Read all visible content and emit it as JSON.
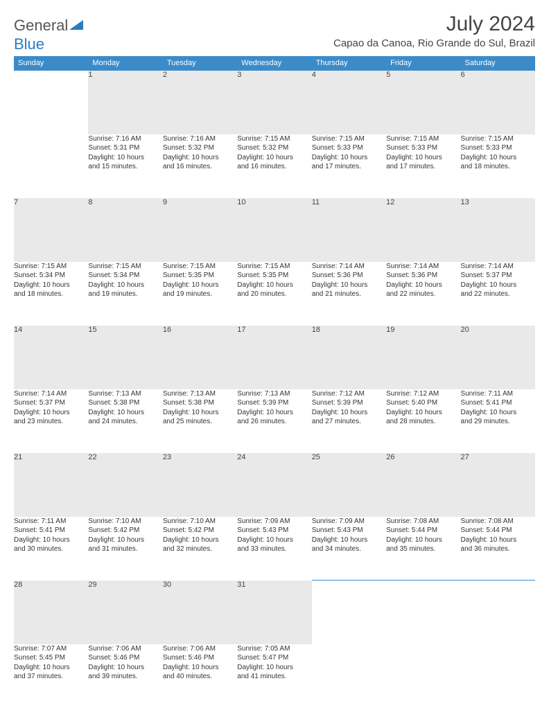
{
  "brand": {
    "part1": "General",
    "part2": "Blue"
  },
  "title": "July 2024",
  "location": "Capao da Canoa, Rio Grande do Sul, Brazil",
  "colors": {
    "header_bg": "#3b8bc9",
    "header_text": "#ffffff",
    "daynum_bg": "#e9e9e9",
    "border": "#3b8bc9",
    "text": "#333333",
    "logo_gray": "#555555",
    "logo_blue": "#2b7bbf"
  },
  "weekdays": [
    "Sunday",
    "Monday",
    "Tuesday",
    "Wednesday",
    "Thursday",
    "Friday",
    "Saturday"
  ],
  "weeks": [
    {
      "nums": [
        "",
        "1",
        "2",
        "3",
        "4",
        "5",
        "6"
      ],
      "cells": [
        null,
        {
          "sunrise": "Sunrise: 7:16 AM",
          "sunset": "Sunset: 5:31 PM",
          "day1": "Daylight: 10 hours",
          "day2": "and 15 minutes."
        },
        {
          "sunrise": "Sunrise: 7:16 AM",
          "sunset": "Sunset: 5:32 PM",
          "day1": "Daylight: 10 hours",
          "day2": "and 16 minutes."
        },
        {
          "sunrise": "Sunrise: 7:15 AM",
          "sunset": "Sunset: 5:32 PM",
          "day1": "Daylight: 10 hours",
          "day2": "and 16 minutes."
        },
        {
          "sunrise": "Sunrise: 7:15 AM",
          "sunset": "Sunset: 5:33 PM",
          "day1": "Daylight: 10 hours",
          "day2": "and 17 minutes."
        },
        {
          "sunrise": "Sunrise: 7:15 AM",
          "sunset": "Sunset: 5:33 PM",
          "day1": "Daylight: 10 hours",
          "day2": "and 17 minutes."
        },
        {
          "sunrise": "Sunrise: 7:15 AM",
          "sunset": "Sunset: 5:33 PM",
          "day1": "Daylight: 10 hours",
          "day2": "and 18 minutes."
        }
      ]
    },
    {
      "nums": [
        "7",
        "8",
        "9",
        "10",
        "11",
        "12",
        "13"
      ],
      "cells": [
        {
          "sunrise": "Sunrise: 7:15 AM",
          "sunset": "Sunset: 5:34 PM",
          "day1": "Daylight: 10 hours",
          "day2": "and 18 minutes."
        },
        {
          "sunrise": "Sunrise: 7:15 AM",
          "sunset": "Sunset: 5:34 PM",
          "day1": "Daylight: 10 hours",
          "day2": "and 19 minutes."
        },
        {
          "sunrise": "Sunrise: 7:15 AM",
          "sunset": "Sunset: 5:35 PM",
          "day1": "Daylight: 10 hours",
          "day2": "and 19 minutes."
        },
        {
          "sunrise": "Sunrise: 7:15 AM",
          "sunset": "Sunset: 5:35 PM",
          "day1": "Daylight: 10 hours",
          "day2": "and 20 minutes."
        },
        {
          "sunrise": "Sunrise: 7:14 AM",
          "sunset": "Sunset: 5:36 PM",
          "day1": "Daylight: 10 hours",
          "day2": "and 21 minutes."
        },
        {
          "sunrise": "Sunrise: 7:14 AM",
          "sunset": "Sunset: 5:36 PM",
          "day1": "Daylight: 10 hours",
          "day2": "and 22 minutes."
        },
        {
          "sunrise": "Sunrise: 7:14 AM",
          "sunset": "Sunset: 5:37 PM",
          "day1": "Daylight: 10 hours",
          "day2": "and 22 minutes."
        }
      ]
    },
    {
      "nums": [
        "14",
        "15",
        "16",
        "17",
        "18",
        "19",
        "20"
      ],
      "cells": [
        {
          "sunrise": "Sunrise: 7:14 AM",
          "sunset": "Sunset: 5:37 PM",
          "day1": "Daylight: 10 hours",
          "day2": "and 23 minutes."
        },
        {
          "sunrise": "Sunrise: 7:13 AM",
          "sunset": "Sunset: 5:38 PM",
          "day1": "Daylight: 10 hours",
          "day2": "and 24 minutes."
        },
        {
          "sunrise": "Sunrise: 7:13 AM",
          "sunset": "Sunset: 5:38 PM",
          "day1": "Daylight: 10 hours",
          "day2": "and 25 minutes."
        },
        {
          "sunrise": "Sunrise: 7:13 AM",
          "sunset": "Sunset: 5:39 PM",
          "day1": "Daylight: 10 hours",
          "day2": "and 26 minutes."
        },
        {
          "sunrise": "Sunrise: 7:12 AM",
          "sunset": "Sunset: 5:39 PM",
          "day1": "Daylight: 10 hours",
          "day2": "and 27 minutes."
        },
        {
          "sunrise": "Sunrise: 7:12 AM",
          "sunset": "Sunset: 5:40 PM",
          "day1": "Daylight: 10 hours",
          "day2": "and 28 minutes."
        },
        {
          "sunrise": "Sunrise: 7:11 AM",
          "sunset": "Sunset: 5:41 PM",
          "day1": "Daylight: 10 hours",
          "day2": "and 29 minutes."
        }
      ]
    },
    {
      "nums": [
        "21",
        "22",
        "23",
        "24",
        "25",
        "26",
        "27"
      ],
      "cells": [
        {
          "sunrise": "Sunrise: 7:11 AM",
          "sunset": "Sunset: 5:41 PM",
          "day1": "Daylight: 10 hours",
          "day2": "and 30 minutes."
        },
        {
          "sunrise": "Sunrise: 7:10 AM",
          "sunset": "Sunset: 5:42 PM",
          "day1": "Daylight: 10 hours",
          "day2": "and 31 minutes."
        },
        {
          "sunrise": "Sunrise: 7:10 AM",
          "sunset": "Sunset: 5:42 PM",
          "day1": "Daylight: 10 hours",
          "day2": "and 32 minutes."
        },
        {
          "sunrise": "Sunrise: 7:09 AM",
          "sunset": "Sunset: 5:43 PM",
          "day1": "Daylight: 10 hours",
          "day2": "and 33 minutes."
        },
        {
          "sunrise": "Sunrise: 7:09 AM",
          "sunset": "Sunset: 5:43 PM",
          "day1": "Daylight: 10 hours",
          "day2": "and 34 minutes."
        },
        {
          "sunrise": "Sunrise: 7:08 AM",
          "sunset": "Sunset: 5:44 PM",
          "day1": "Daylight: 10 hours",
          "day2": "and 35 minutes."
        },
        {
          "sunrise": "Sunrise: 7:08 AM",
          "sunset": "Sunset: 5:44 PM",
          "day1": "Daylight: 10 hours",
          "day2": "and 36 minutes."
        }
      ]
    },
    {
      "nums": [
        "28",
        "29",
        "30",
        "31",
        "",
        "",
        ""
      ],
      "cells": [
        {
          "sunrise": "Sunrise: 7:07 AM",
          "sunset": "Sunset: 5:45 PM",
          "day1": "Daylight: 10 hours",
          "day2": "and 37 minutes."
        },
        {
          "sunrise": "Sunrise: 7:06 AM",
          "sunset": "Sunset: 5:46 PM",
          "day1": "Daylight: 10 hours",
          "day2": "and 39 minutes."
        },
        {
          "sunrise": "Sunrise: 7:06 AM",
          "sunset": "Sunset: 5:46 PM",
          "day1": "Daylight: 10 hours",
          "day2": "and 40 minutes."
        },
        {
          "sunrise": "Sunrise: 7:05 AM",
          "sunset": "Sunset: 5:47 PM",
          "day1": "Daylight: 10 hours",
          "day2": "and 41 minutes."
        },
        null,
        null,
        null
      ]
    }
  ]
}
